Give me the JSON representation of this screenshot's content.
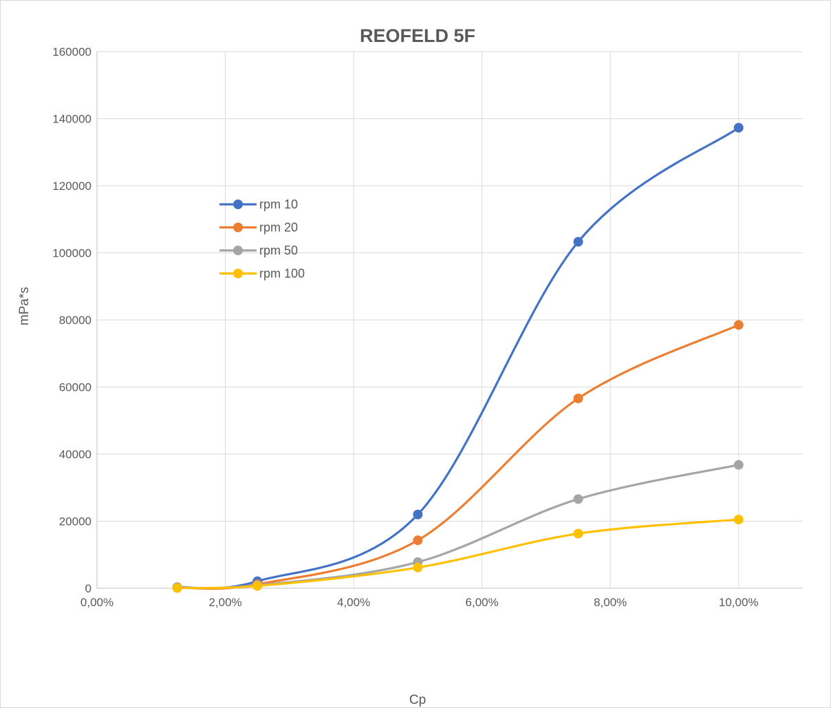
{
  "chart_data": {
    "type": "line",
    "title": "REOFELD 5F",
    "xlabel": "Cp",
    "ylabel": "mPa*s",
    "xlim": [
      0,
      0.11
    ],
    "ylim": [
      0,
      160000
    ],
    "x_ticks": [
      0,
      0.02,
      0.04,
      0.06,
      0.08,
      0.1
    ],
    "x_tick_labels": [
      "0,00%",
      "2,00%",
      "4,00%",
      "6,00%",
      "8,00%",
      "10,00%"
    ],
    "y_ticks": [
      0,
      20000,
      40000,
      60000,
      80000,
      100000,
      120000,
      140000,
      160000
    ],
    "y_tick_labels": [
      "0",
      "20000",
      "40000",
      "60000",
      "80000",
      "100000",
      "120000",
      "140000",
      "160000"
    ],
    "grid": true,
    "smooth": true,
    "legend_position": "left, inside plot area",
    "x": [
      0.0125,
      0.025,
      0.05,
      0.075,
      0.1
    ],
    "series": [
      {
        "name": "rpm 10",
        "color": "#4472c4",
        "values": [
          300,
          2100,
          22000,
          103300,
          137300
        ]
      },
      {
        "name": "rpm 20",
        "color": "#ed7d31",
        "values": [
          200,
          1200,
          14300,
          56600,
          78500
        ]
      },
      {
        "name": "rpm 50",
        "color": "#a5a5a5",
        "values": [
          100,
          900,
          7800,
          26600,
          36800
        ]
      },
      {
        "name": "rpm 100",
        "color": "#ffc000",
        "values": [
          100,
          700,
          6200,
          16300,
          20500
        ]
      }
    ]
  }
}
